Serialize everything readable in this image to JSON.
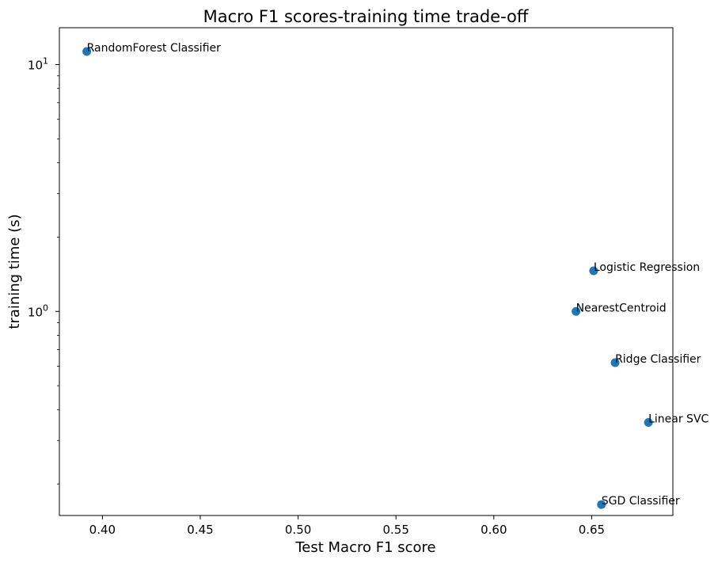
{
  "chart_data": {
    "type": "scatter",
    "title": "Macro F1 scores-training time trade-off",
    "xlabel": "Test Macro F1 score",
    "ylabel": "training time (s)",
    "xscale": "linear",
    "yscale": "log",
    "xlim": [
      0.378,
      0.6915
    ],
    "ylim": [
      0.149,
      14.1
    ],
    "grid": false,
    "marker_color": "#1f77b4",
    "x_ticks": [
      {
        "value": 0.4,
        "label": "0.40"
      },
      {
        "value": 0.45,
        "label": "0.45"
      },
      {
        "value": 0.5,
        "label": "0.50"
      },
      {
        "value": 0.55,
        "label": "0.55"
      },
      {
        "value": 0.6,
        "label": "0.60"
      },
      {
        "value": 0.65,
        "label": "0.65"
      }
    ],
    "y_major_ticks": [
      {
        "value": 1,
        "base": "10",
        "exponent": "0"
      },
      {
        "value": 10,
        "base": "10",
        "exponent": "1"
      }
    ],
    "y_minor_ticks": [
      0.2,
      0.3,
      0.4,
      0.5,
      0.6,
      0.7,
      0.8,
      0.9,
      2,
      3,
      4,
      5,
      6,
      7,
      8,
      9
    ],
    "points": [
      {
        "label": "RandomForest Classifier",
        "x": 0.392,
        "y": 11.3
      },
      {
        "label": "Logistic Regression",
        "x": 0.651,
        "y": 1.46
      },
      {
        "label": "NearestCentroid",
        "x": 0.642,
        "y": 1.0
      },
      {
        "label": "Ridge Classifier",
        "x": 0.662,
        "y": 0.62
      },
      {
        "label": "Linear SVC",
        "x": 0.679,
        "y": 0.355
      },
      {
        "label": "SGD Classifier",
        "x": 0.655,
        "y": 0.165
      }
    ]
  }
}
